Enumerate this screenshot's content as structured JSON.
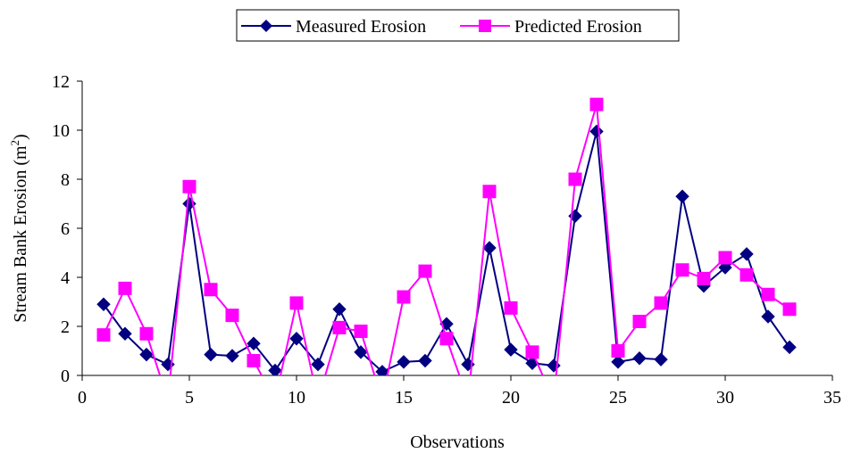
{
  "chart_data": {
    "type": "line",
    "xlabel": "Observations",
    "ylabel": "Stream Bank Erosion (m",
    "ylabel_sup": "2",
    "ylabel_close": ")",
    "xlim": [
      0,
      35
    ],
    "ylim": [
      0,
      12
    ],
    "xticks": [
      0,
      5,
      10,
      15,
      20,
      25,
      30,
      35
    ],
    "yticks": [
      0,
      2,
      4,
      6,
      8,
      10,
      12
    ],
    "grid": false,
    "legend_position": "top",
    "series": [
      {
        "name": "Measured Erosion",
        "color": "#000080",
        "marker": "diamond",
        "x": [
          1,
          2,
          3,
          4,
          5,
          6,
          7,
          8,
          9,
          10,
          11,
          12,
          13,
          14,
          15,
          16,
          17,
          18,
          19,
          20,
          21,
          22,
          23,
          24,
          25,
          26,
          27,
          28,
          29,
          30,
          31,
          32,
          33
        ],
        "values": [
          2.9,
          1.7,
          0.85,
          0.45,
          7.0,
          0.85,
          0.8,
          1.3,
          0.2,
          1.5,
          0.45,
          2.7,
          0.95,
          0.15,
          0.55,
          0.6,
          2.1,
          0.45,
          5.2,
          1.05,
          0.5,
          0.4,
          6.5,
          9.95,
          0.55,
          0.7,
          0.65,
          7.3,
          3.65,
          4.4,
          4.95,
          2.4,
          1.15
        ]
      },
      {
        "name": "Predicted Erosion",
        "color": "#FF00FF",
        "marker": "square",
        "x": [
          1,
          2,
          3,
          4,
          5,
          6,
          7,
          8,
          9,
          10,
          11,
          12,
          13,
          14,
          15,
          16,
          17,
          18,
          19,
          20,
          21,
          22,
          23,
          24,
          25,
          26,
          27,
          28,
          29,
          30,
          31,
          32,
          33
        ],
        "values": [
          1.65,
          3.55,
          1.7,
          -1.0,
          7.7,
          3.5,
          2.45,
          0.6,
          -1.0,
          2.95,
          -1.0,
          1.95,
          1.8,
          -1.0,
          3.2,
          4.25,
          1.5,
          -1.0,
          7.5,
          2.75,
          0.95,
          -1.0,
          8.0,
          11.05,
          1.0,
          2.2,
          2.95,
          4.3,
          3.95,
          4.8,
          4.1,
          3.3,
          2.7
        ]
      }
    ]
  }
}
